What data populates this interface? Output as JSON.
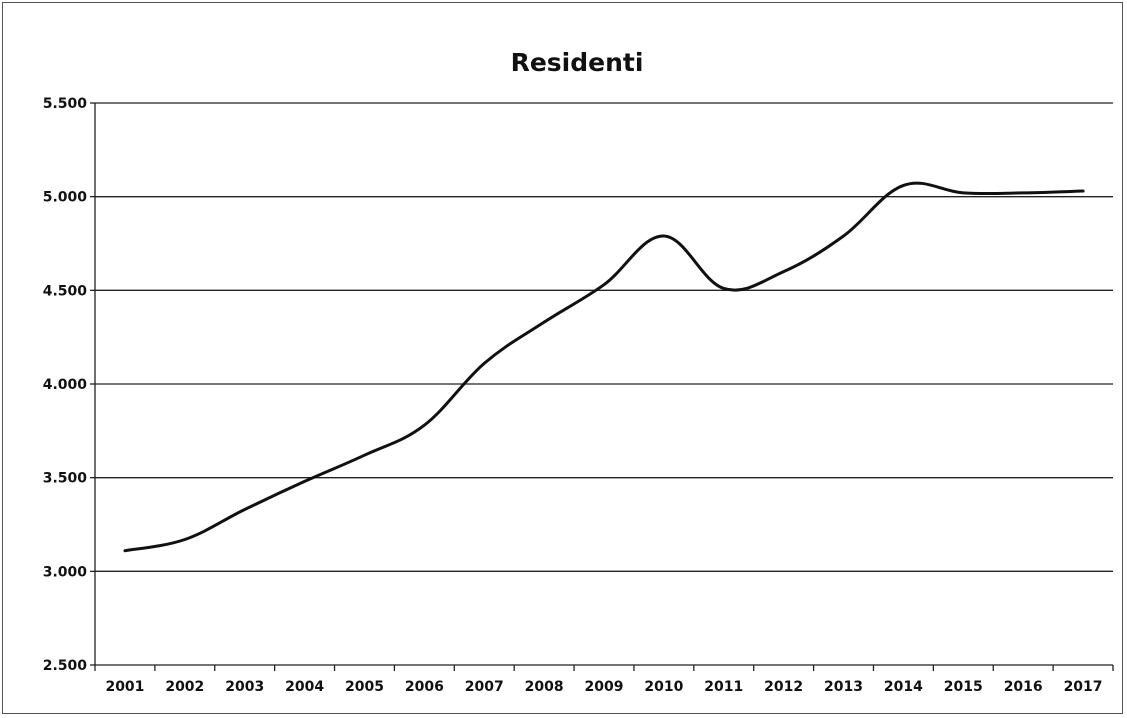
{
  "chart_data": {
    "type": "line",
    "title": "Residenti",
    "xlabel": "",
    "ylabel": "",
    "categories": [
      "2001",
      "2002",
      "2003",
      "2004",
      "2005",
      "2006",
      "2007",
      "2008",
      "2009",
      "2010",
      "2011",
      "2012",
      "2013",
      "2014",
      "2015",
      "2016",
      "2017"
    ],
    "y_tick_labels": [
      "2.500",
      "3.000",
      "3.500",
      "4.000",
      "4.500",
      "5.000",
      "5.500"
    ],
    "ylim": [
      2500,
      5500
    ],
    "grid": true,
    "legend": "none",
    "series": [
      {
        "values": [
          3110,
          3170,
          3330,
          3480,
          3620,
          3780,
          4110,
          4330,
          4530,
          4790,
          4510,
          4600,
          4790,
          5060,
          5020,
          5020,
          5030
        ],
        "color": "#111111"
      }
    ]
  }
}
